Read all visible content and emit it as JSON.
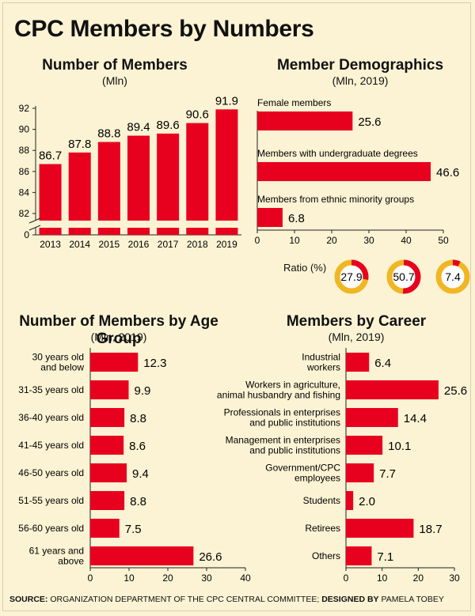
{
  "title": "CPC Members by Numbers",
  "source": {
    "source_prefix": "SOURCE:",
    "source_text": "ORGANIZATION DEPARTMENT OF THE CPC CENTRAL COMMITTEE;",
    "designed_prefix": "DESIGNED BY",
    "designer": "PAMELA TOBEY"
  },
  "colors": {
    "bar": "#e8001f",
    "donut_track": "#f0b624",
    "donut_fill": "#e8001f",
    "background": "#fbf3d3"
  },
  "ratio": {
    "label": "Ratio (%)",
    "values": [
      "27.9",
      "50.7",
      "7.4"
    ],
    "percents": [
      27.9,
      50.7,
      7.4
    ]
  },
  "chart_data": [
    {
      "type": "bar",
      "title": "Number of Members",
      "subtitle": "(Mln)",
      "categories": [
        "2013",
        "2014",
        "2015",
        "2016",
        "2017",
        "2018",
        "2019"
      ],
      "values": [
        86.7,
        87.8,
        88.8,
        89.4,
        89.6,
        90.6,
        91.9
      ],
      "value_labels": [
        "86.7",
        "87.8",
        "88.8",
        "89.4",
        "89.6",
        "90.6",
        "91.9"
      ],
      "y_ticks": [
        "92",
        "90",
        "88",
        "86",
        "84",
        "82",
        "0"
      ],
      "ylim": [
        80,
        92
      ],
      "axis_break": true
    },
    {
      "type": "bar",
      "orientation": "horizontal",
      "title": "Member Demographics",
      "subtitle": "(Mln, 2019)",
      "categories": [
        "Female members",
        "Members with undergraduate degrees",
        "Members from ethnic minority groups"
      ],
      "values": [
        25.6,
        46.6,
        6.8
      ],
      "value_labels": [
        "25.6",
        "46.6",
        "6.8"
      ],
      "x_ticks": [
        "0",
        "10",
        "20",
        "30",
        "40",
        "50"
      ],
      "xlim": [
        0,
        50
      ]
    },
    {
      "type": "bar",
      "orientation": "horizontal",
      "title": "Number of Members by Age Group",
      "subtitle": "(Mln, 2019)",
      "categories": [
        [
          "30 years old",
          "and below"
        ],
        [
          "31-35 years old"
        ],
        [
          "36-40 years old"
        ],
        [
          "41-45 years old"
        ],
        [
          "46-50 years old"
        ],
        [
          "51-55 years old"
        ],
        [
          "56-60 years old"
        ],
        [
          "61 years and",
          "above"
        ]
      ],
      "values": [
        12.3,
        9.9,
        8.8,
        8.6,
        9.4,
        8.8,
        7.5,
        26.6
      ],
      "value_labels": [
        "12.3",
        "9.9",
        "8.8",
        "8.6",
        "9.4",
        "8.8",
        "7.5",
        "26.6"
      ],
      "x_ticks": [
        "0",
        "10",
        "20",
        "30",
        "40"
      ],
      "xlim": [
        0,
        40
      ]
    },
    {
      "type": "bar",
      "orientation": "horizontal",
      "title": "Members by Career",
      "subtitle": "(Mln, 2019)",
      "categories": [
        [
          "Industrial",
          "workers"
        ],
        [
          "Workers in agriculture,",
          "animal husbandry and fishing"
        ],
        [
          "Professionals in enterprises",
          "and public institutions"
        ],
        [
          "Management in enterprises",
          "and public institutions"
        ],
        [
          "Government/CPC",
          "employees"
        ],
        [
          "Students"
        ],
        [
          "Retirees"
        ],
        [
          "Others"
        ]
      ],
      "values": [
        6.4,
        25.6,
        14.4,
        10.1,
        7.7,
        2.0,
        18.7,
        7.1
      ],
      "value_labels": [
        "6.4",
        "25.6",
        "14.4",
        "10.1",
        "7.7",
        "2.0",
        "18.7",
        "7.1"
      ],
      "x_ticks": [
        "0",
        "10",
        "20",
        "30"
      ],
      "xlim": [
        0,
        30
      ]
    }
  ]
}
